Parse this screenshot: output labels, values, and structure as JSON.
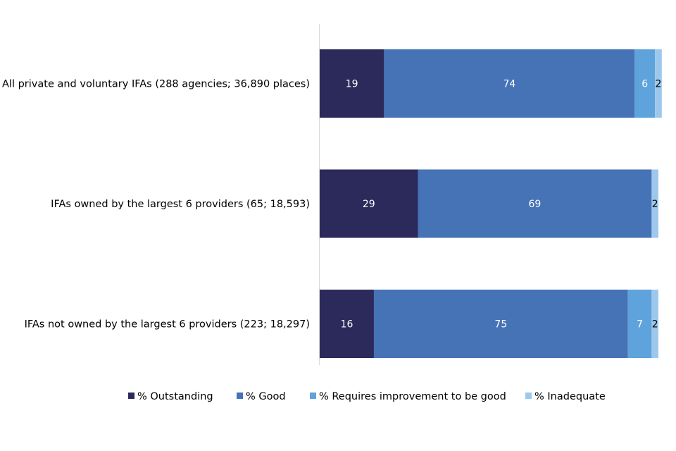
{
  "chart_data": {
    "type": "bar",
    "orientation": "horizontal",
    "stacked": true,
    "stack_total": 100,
    "categories": [
      "All private and voluntary IFAs (288 agencies; 36,890 places)",
      "IFAs owned by the largest 6 providers (65; 18,593)",
      "IFAs not owned by the largest 6 providers (223; 18,297)"
    ],
    "series": [
      {
        "name": "% Outstanding",
        "color": "#2b2a5a",
        "label_color": "#ffffff",
        "values": [
          19,
          29,
          16
        ],
        "labels": [
          "19",
          "29",
          "16"
        ]
      },
      {
        "name": "% Good",
        "color": "#4672b6",
        "label_color": "#ffffff",
        "values": [
          74,
          69,
          75
        ],
        "labels": [
          "74",
          "69",
          "75"
        ]
      },
      {
        "name": "% Requires improvement to be good",
        "color": "#5fa3dc",
        "label_color": "#ffffff",
        "values": [
          6,
          0,
          7
        ],
        "labels": [
          "6",
          "",
          "7"
        ]
      },
      {
        "name": "% Inadequate",
        "color": "#9dc8ec",
        "label_color": "#000000",
        "values": [
          2,
          2,
          2
        ],
        "labels": [
          "2",
          "2",
          "2"
        ]
      }
    ],
    "legend_position": "bottom",
    "gridlines": false,
    "xlim": [
      0,
      100
    ]
  }
}
